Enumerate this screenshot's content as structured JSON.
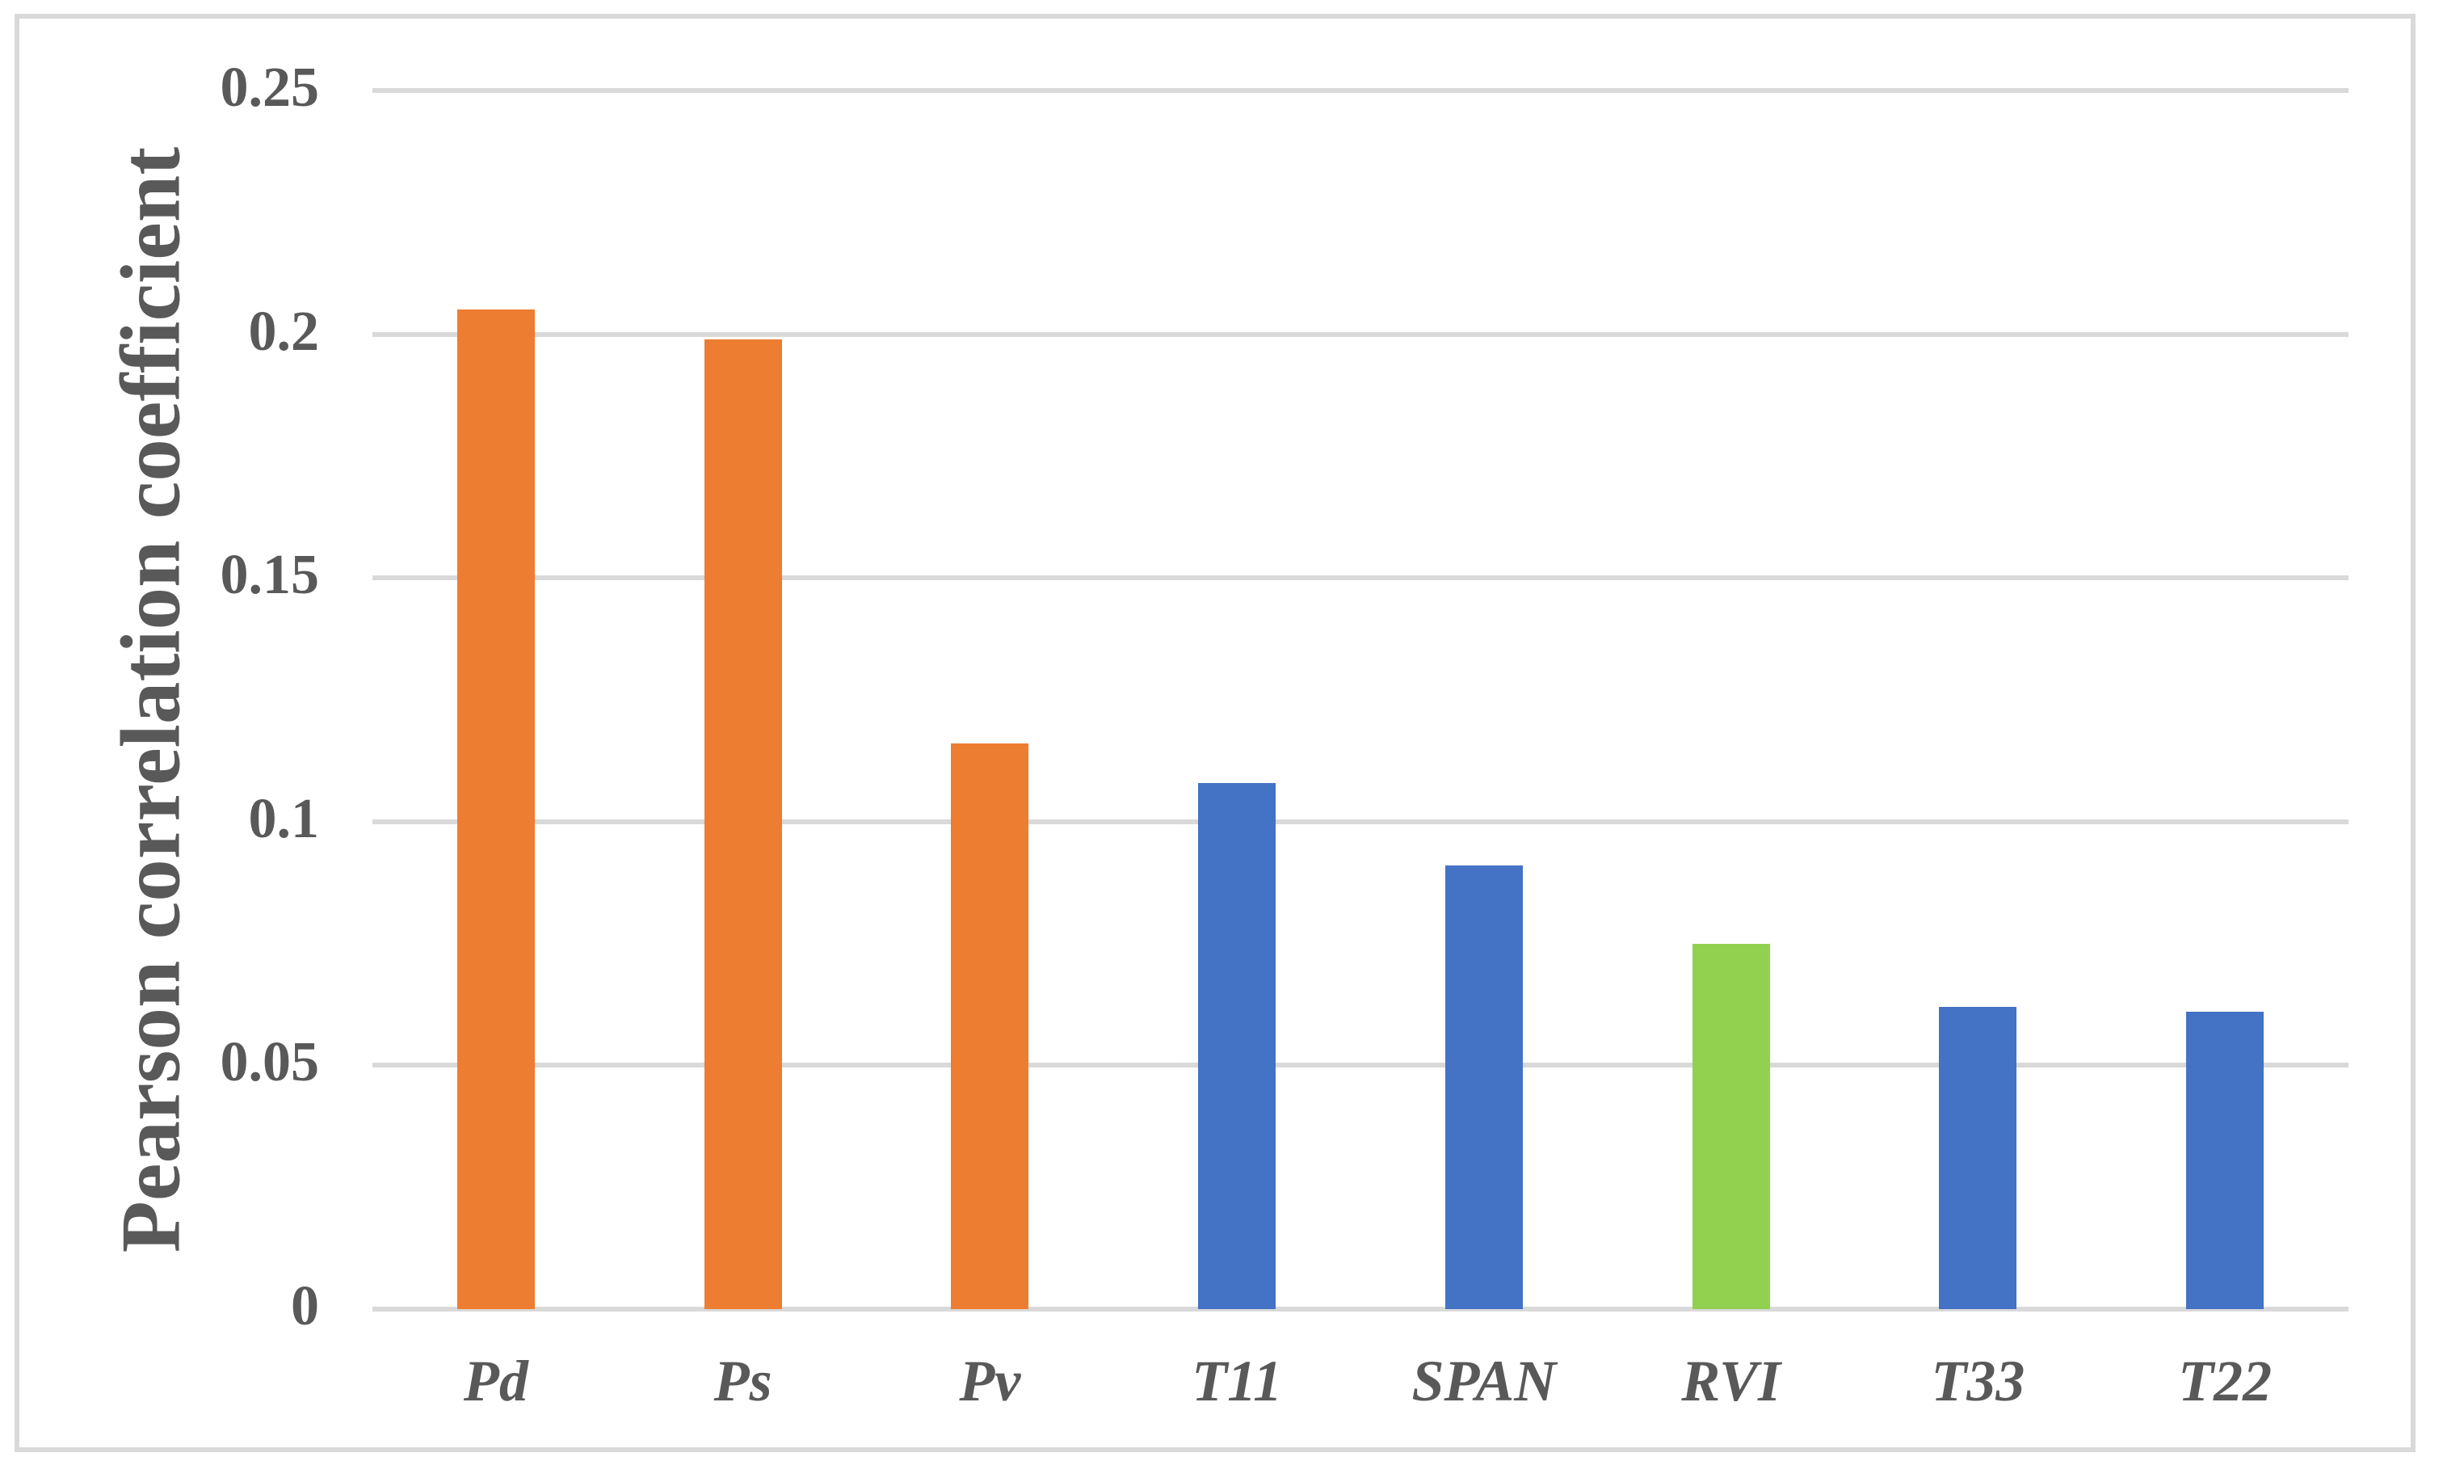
{
  "chart_data": {
    "type": "bar",
    "title": "",
    "xlabel": "",
    "ylabel": "Pearson correlation coefficient",
    "categories": [
      "Pd",
      "Ps",
      "Pv",
      "T11",
      "SPAN",
      "RVI",
      "T33",
      "T22"
    ],
    "values": [
      0.205,
      0.199,
      0.116,
      0.108,
      0.091,
      0.075,
      0.062,
      0.061
    ],
    "bar_colors": [
      "#ED7D31",
      "#ED7D31",
      "#ED7D31",
      "#4472C4",
      "#4472C4",
      "#92D050",
      "#4472C4",
      "#4472C4"
    ],
    "ylim": [
      0,
      0.25
    ],
    "yticks": [
      0,
      0.05,
      0.1,
      0.15,
      0.2,
      0.25
    ],
    "ytick_labels": [
      "0",
      "0.05",
      "0.1",
      "0.15",
      "0.2",
      "0.25"
    ],
    "grid": "horizontal",
    "legend": "none",
    "colors": {
      "orange_series": "#ED7D31",
      "blue_series": "#4472C4",
      "green_series": "#92D050",
      "gridline": "#D9D9D9",
      "frame": "#D9D9D9",
      "text": "#595959"
    }
  }
}
